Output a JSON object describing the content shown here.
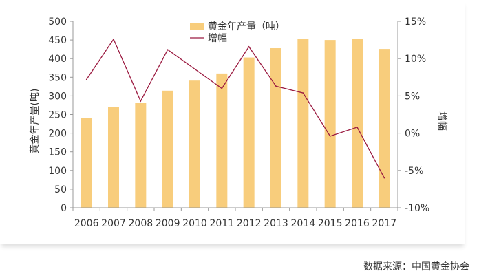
{
  "chart_data": {
    "type": "bar",
    "categories": [
      "2006",
      "2007",
      "2008",
      "2009",
      "2010",
      "2011",
      "2012",
      "2013",
      "2014",
      "2015",
      "2016",
      "2017"
    ],
    "series": [
      {
        "name": "黄金年产量（吨）",
        "type": "bar",
        "axis": "left",
        "color": "#f8cd7c",
        "values": [
          240,
          270,
          282,
          314,
          341,
          360,
          403,
          428,
          452,
          450,
          453,
          426
        ]
      },
      {
        "name": "增幅",
        "type": "line",
        "axis": "right",
        "color": "#9b1a40",
        "values": [
          7.2,
          12.6,
          4.3,
          11.2,
          8.6,
          6.0,
          11.6,
          6.3,
          5.4,
          -0.4,
          0.8,
          -6.0
        ]
      }
    ],
    "ylabel": "黄金年产量(吨)",
    "y2label": "增幅",
    "ylim": [
      0,
      500
    ],
    "y2lim": [
      -10,
      15
    ],
    "yticks": [
      "0",
      "50",
      "100",
      "150",
      "200",
      "250",
      "300",
      "350",
      "400",
      "450",
      "500"
    ],
    "y2ticks": [
      "-10%",
      "-5%",
      "0%",
      "5%",
      "10%",
      "15%"
    ],
    "legend": "top-center",
    "grid": false
  },
  "source": "数据来源：中国黄金协会"
}
